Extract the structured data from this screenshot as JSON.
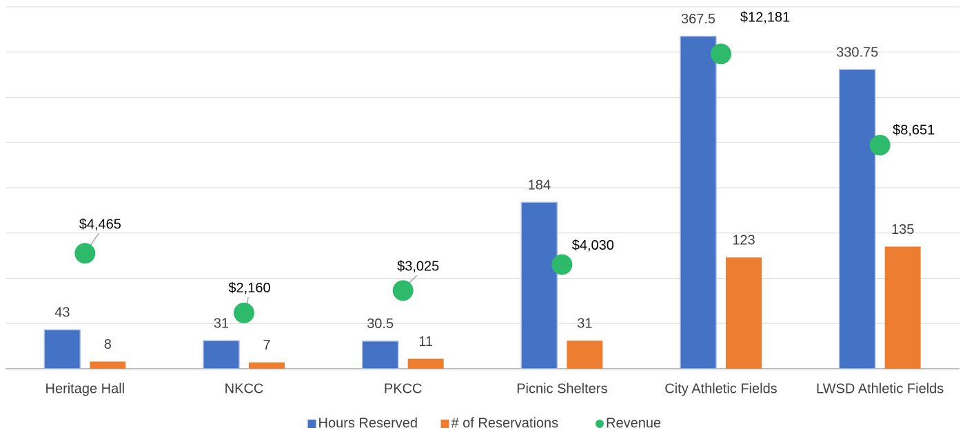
{
  "chart_data": {
    "type": "bar",
    "categories": [
      "Heritage Hall",
      "NKCC",
      "PKCC",
      "Picnic Shelters",
      "City Athletic Fields",
      "LWSD Athletic Fields"
    ],
    "series": [
      {
        "name": "Hours Reserved",
        "type": "bar",
        "color": "#4472c4",
        "values": [
          43,
          31,
          30.5,
          184,
          367.5,
          330.75
        ]
      },
      {
        "name": "# of Reservations",
        "type": "bar",
        "color": "#ed7d31",
        "values": [
          8,
          7,
          11,
          31,
          123,
          135
        ]
      },
      {
        "name": "Revenue",
        "type": "scatter",
        "axis": "y2",
        "color": "#2dba6a",
        "values": [
          4465,
          2160,
          3025,
          4030,
          12181,
          8651
        ],
        "value_labels": [
          "$4,465",
          "$2,160",
          "$3,025",
          "$4,030",
          "$12,181",
          "$8,651"
        ]
      }
    ],
    "ylim": [
      0,
      400
    ],
    "yticks": [
      0,
      50,
      100,
      150,
      200,
      250,
      300,
      350,
      400
    ],
    "y2lim": [
      0,
      14000
    ],
    "grid": true,
    "legend": "bottom"
  }
}
